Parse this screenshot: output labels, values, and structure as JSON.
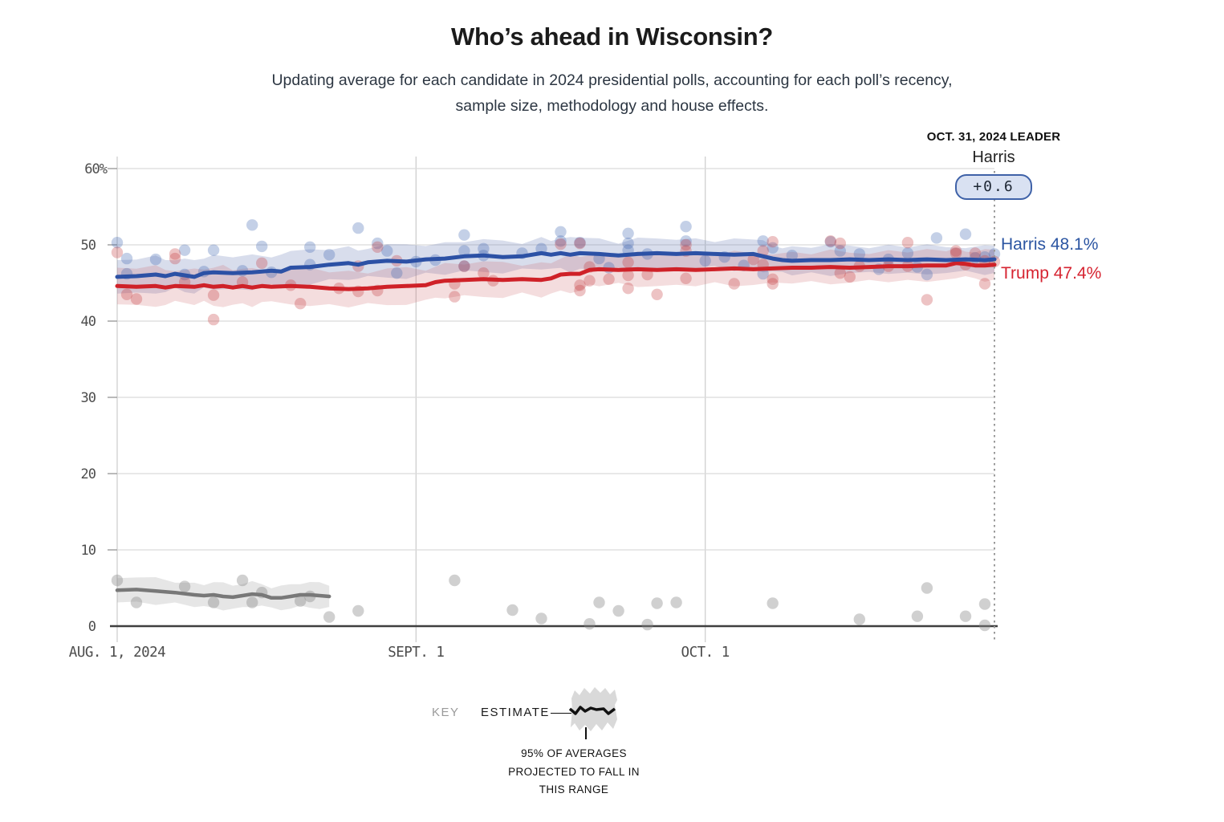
{
  "header": {
    "title": "Who’s ahead in Wisconsin?",
    "subtitle_line1": "Updating average for each candidate in 2024 presidential polls, accounting for each poll’s recency,",
    "subtitle_line2": "sample size, methodology and house effects."
  },
  "leader_annotation": {
    "date_label": "OCT. 31, 2024 LEADER",
    "leader_name": "Harris",
    "margin_badge": "+0.6"
  },
  "end_labels": {
    "harris": "Harris 48.1%",
    "trump": "Trump 47.4%"
  },
  "key": {
    "key_label": "KEY",
    "estimate_label": "ESTIMATE",
    "caption_line1": "95% OF AVERAGES",
    "caption_line2": "PROJECTED TO FALL IN",
    "caption_line3": "THIS RANGE"
  },
  "colors": {
    "harris_line": "#2c51a5",
    "trump_line": "#cf2128",
    "gray_line": "#787878",
    "harris_band": "rgba(98,118,180,0.25)",
    "trump_band": "rgba(205,100,105,0.22)",
    "gray_band": "rgba(165,165,165,0.28)",
    "harris_dot": "#3b63ae",
    "trump_dot": "#c4383d",
    "gray_dot": "#8a8a8a",
    "grid": "#dbdbdb",
    "grid_vertical": "#cfcfcf",
    "axis": "#3f3f3f",
    "tick_text": "#4c4c4c",
    "leader_line": "#9b9b9b",
    "badge_bg": "#d9e1f2",
    "badge_border": "#3f62a8",
    "harris_label": "#2b55a2",
    "trump_label": "#d62431"
  },
  "chart_data": {
    "type": "line",
    "title": "Who’s ahead in Wisconsin?",
    "x_axis": {
      "tick_labels": [
        "AUG. 1, 2024",
        "SEPT. 1",
        "OCT. 1"
      ],
      "tick_days": [
        0,
        31,
        61
      ],
      "domain_days": [
        0,
        91
      ],
      "end_day_label": "OCT. 31, 2024"
    },
    "y_axis": {
      "tick_labels": [
        "0",
        "10",
        "20",
        "30",
        "40",
        "50",
        "60%"
      ],
      "tick_values": [
        0,
        10,
        20,
        30,
        40,
        50,
        60
      ],
      "unit": "%",
      "range": [
        0,
        63
      ]
    },
    "leader_day": 91,
    "series": [
      {
        "name": "Harris",
        "end_value": 48.1,
        "band_halfwidth": 2.2,
        "points": [
          [
            0,
            45.8
          ],
          [
            2,
            45.9
          ],
          [
            4,
            46.1
          ],
          [
            5,
            45.9
          ],
          [
            6,
            46.2
          ],
          [
            7,
            46.0
          ],
          [
            8,
            45.8
          ],
          [
            9,
            46.3
          ],
          [
            10,
            46.4
          ],
          [
            12,
            46.3
          ],
          [
            14,
            46.4
          ],
          [
            16,
            46.6
          ],
          [
            17,
            46.5
          ],
          [
            18,
            47.0
          ],
          [
            20,
            47.1
          ],
          [
            22,
            47.4
          ],
          [
            24,
            47.6
          ],
          [
            25,
            47.4
          ],
          [
            26,
            47.7
          ],
          [
            28,
            47.9
          ],
          [
            30,
            47.8
          ],
          [
            32,
            48.1
          ],
          [
            34,
            48.2
          ],
          [
            36,
            48.5
          ],
          [
            38,
            48.6
          ],
          [
            40,
            48.4
          ],
          [
            42,
            48.5
          ],
          [
            44,
            48.9
          ],
          [
            45,
            48.7
          ],
          [
            46,
            48.9
          ],
          [
            47,
            48.7
          ],
          [
            48,
            48.9
          ],
          [
            50,
            48.8
          ],
          [
            52,
            48.6
          ],
          [
            54,
            48.8
          ],
          [
            56,
            48.9
          ],
          [
            58,
            48.8
          ],
          [
            60,
            48.9
          ],
          [
            62,
            48.8
          ],
          [
            64,
            48.7
          ],
          [
            66,
            48.8
          ],
          [
            67,
            48.5
          ],
          [
            68,
            48.2
          ],
          [
            69,
            48.0
          ],
          [
            70,
            47.9
          ],
          [
            72,
            48.0
          ],
          [
            74,
            48.0
          ],
          [
            76,
            48.1
          ],
          [
            78,
            48.0
          ],
          [
            80,
            48.1
          ],
          [
            82,
            48.0
          ],
          [
            84,
            48.1
          ],
          [
            86,
            48.0
          ],
          [
            88,
            48.1
          ],
          [
            90,
            48.0
          ],
          [
            91,
            48.1
          ]
        ]
      },
      {
        "name": "Trump",
        "end_value": 47.4,
        "band_halfwidth": 2.4,
        "points": [
          [
            0,
            44.6
          ],
          [
            2,
            44.5
          ],
          [
            4,
            44.6
          ],
          [
            5,
            44.4
          ],
          [
            6,
            44.6
          ],
          [
            8,
            44.5
          ],
          [
            9,
            44.7
          ],
          [
            10,
            44.5
          ],
          [
            11,
            44.6
          ],
          [
            12,
            44.4
          ],
          [
            13,
            44.6
          ],
          [
            14,
            44.4
          ],
          [
            15,
            44.6
          ],
          [
            16,
            44.5
          ],
          [
            18,
            44.6
          ],
          [
            20,
            44.5
          ],
          [
            22,
            44.3
          ],
          [
            24,
            44.2
          ],
          [
            26,
            44.3
          ],
          [
            28,
            44.5
          ],
          [
            30,
            44.6
          ],
          [
            32,
            44.7
          ],
          [
            33,
            45.1
          ],
          [
            34,
            45.3
          ],
          [
            36,
            45.4
          ],
          [
            38,
            45.5
          ],
          [
            40,
            45.4
          ],
          [
            42,
            45.5
          ],
          [
            44,
            45.4
          ],
          [
            45,
            45.6
          ],
          [
            46,
            46.1
          ],
          [
            47,
            46.2
          ],
          [
            48,
            46.2
          ],
          [
            49,
            46.7
          ],
          [
            50,
            46.8
          ],
          [
            52,
            46.7
          ],
          [
            54,
            46.8
          ],
          [
            56,
            46.7
          ],
          [
            58,
            46.8
          ],
          [
            60,
            46.7
          ],
          [
            62,
            46.8
          ],
          [
            64,
            46.9
          ],
          [
            66,
            46.8
          ],
          [
            68,
            46.9
          ],
          [
            70,
            47.0
          ],
          [
            72,
            47.0
          ],
          [
            74,
            47.1
          ],
          [
            76,
            47.0
          ],
          [
            78,
            47.1
          ],
          [
            80,
            47.2
          ],
          [
            82,
            47.2
          ],
          [
            84,
            47.3
          ],
          [
            86,
            47.3
          ],
          [
            87,
            47.6
          ],
          [
            88,
            47.5
          ],
          [
            89,
            47.3
          ],
          [
            90,
            47.3
          ],
          [
            91,
            47.4
          ]
        ]
      },
      {
        "name": "Third candidate (unlabeled gray)",
        "band_halfwidth": 1.6,
        "points": [
          [
            0,
            4.7
          ],
          [
            2,
            4.8
          ],
          [
            4,
            4.6
          ],
          [
            6,
            4.4
          ],
          [
            8,
            4.1
          ],
          [
            9,
            4.0
          ],
          [
            10,
            4.1
          ],
          [
            11,
            3.9
          ],
          [
            12,
            3.8
          ],
          [
            13,
            4.0
          ],
          [
            14,
            4.2
          ],
          [
            15,
            4.1
          ],
          [
            16,
            3.7
          ],
          [
            17,
            3.7
          ],
          [
            18,
            3.9
          ],
          [
            19,
            4.1
          ],
          [
            20,
            4.1
          ],
          [
            21,
            4.0
          ],
          [
            22,
            3.9
          ]
        ]
      }
    ],
    "scatter": [
      {
        "series": "Harris",
        "points": [
          [
            0,
            50.3
          ],
          [
            1,
            48.2
          ],
          [
            1,
            46.2
          ],
          [
            4,
            48.1
          ],
          [
            7,
            49.3
          ],
          [
            7,
            46.1
          ],
          [
            9,
            46.5
          ],
          [
            10,
            49.3
          ],
          [
            13,
            46.6
          ],
          [
            14,
            52.6
          ],
          [
            15,
            49.8
          ],
          [
            16,
            46.4
          ],
          [
            20,
            49.7
          ],
          [
            20,
            47.4
          ],
          [
            22,
            48.7
          ],
          [
            25,
            52.2
          ],
          [
            27,
            50.2
          ],
          [
            28,
            49.2
          ],
          [
            29,
            46.3
          ],
          [
            31,
            47.8
          ],
          [
            33,
            48.0
          ],
          [
            36,
            51.3
          ],
          [
            36,
            49.2
          ],
          [
            36,
            47.2
          ],
          [
            38,
            49.5
          ],
          [
            38,
            48.6
          ],
          [
            42,
            48.9
          ],
          [
            44,
            49.5
          ],
          [
            46,
            51.7
          ],
          [
            46,
            50.5
          ],
          [
            48,
            50.3
          ],
          [
            50,
            48.2
          ],
          [
            51,
            47.0
          ],
          [
            53,
            51.5
          ],
          [
            53,
            50.2
          ],
          [
            53,
            49.3
          ],
          [
            55,
            48.8
          ],
          [
            59,
            52.4
          ],
          [
            59,
            50.5
          ],
          [
            61,
            47.9
          ],
          [
            63,
            48.4
          ],
          [
            65,
            47.3
          ],
          [
            67,
            50.5
          ],
          [
            67,
            46.2
          ],
          [
            68,
            49.6
          ],
          [
            70,
            48.6
          ],
          [
            74,
            50.4
          ],
          [
            75,
            49.2
          ],
          [
            77,
            48.8
          ],
          [
            79,
            46.8
          ],
          [
            80,
            48.1
          ],
          [
            82,
            48.9
          ],
          [
            83,
            47.1
          ],
          [
            84,
            46.1
          ],
          [
            85,
            50.9
          ],
          [
            88,
            51.4
          ],
          [
            89,
            48.3
          ],
          [
            90,
            48.4
          ],
          [
            91,
            48.8
          ]
        ]
      },
      {
        "series": "Trump",
        "points": [
          [
            0,
            49.0
          ],
          [
            1,
            43.5
          ],
          [
            2,
            42.9
          ],
          [
            6,
            48.8
          ],
          [
            6,
            48.2
          ],
          [
            7,
            45.1
          ],
          [
            10,
            43.4
          ],
          [
            10,
            40.2
          ],
          [
            13,
            45.1
          ],
          [
            15,
            47.6
          ],
          [
            18,
            44.7
          ],
          [
            19,
            42.3
          ],
          [
            23,
            44.3
          ],
          [
            25,
            47.2
          ],
          [
            25,
            43.9
          ],
          [
            27,
            49.7
          ],
          [
            27,
            44.0
          ],
          [
            29,
            47.9
          ],
          [
            35,
            44.9
          ],
          [
            35,
            43.2
          ],
          [
            36,
            47.2
          ],
          [
            38,
            46.3
          ],
          [
            39,
            45.3
          ],
          [
            46,
            50.1
          ],
          [
            48,
            50.2
          ],
          [
            48,
            44.7
          ],
          [
            48,
            44.0
          ],
          [
            49,
            47.1
          ],
          [
            49,
            45.3
          ],
          [
            51,
            45.5
          ],
          [
            53,
            47.7
          ],
          [
            53,
            46.0
          ],
          [
            53,
            44.3
          ],
          [
            55,
            46.1
          ],
          [
            56,
            43.5
          ],
          [
            59,
            50.0
          ],
          [
            59,
            49.2
          ],
          [
            59,
            45.6
          ],
          [
            64,
            44.9
          ],
          [
            66,
            48.1
          ],
          [
            67,
            49.2
          ],
          [
            67,
            47.4
          ],
          [
            68,
            50.4
          ],
          [
            68,
            45.5
          ],
          [
            68,
            44.9
          ],
          [
            74,
            50.5
          ],
          [
            75,
            50.2
          ],
          [
            75,
            46.3
          ],
          [
            76,
            45.8
          ],
          [
            77,
            47.2
          ],
          [
            80,
            47.2
          ],
          [
            82,
            50.3
          ],
          [
            82,
            47.2
          ],
          [
            84,
            42.8
          ],
          [
            87,
            49.2
          ],
          [
            87,
            48.9
          ],
          [
            88,
            47.4
          ],
          [
            89,
            48.9
          ],
          [
            90,
            47.9
          ],
          [
            90,
            44.9
          ],
          [
            91,
            47.8
          ]
        ]
      },
      {
        "series": "Third candidate (unlabeled gray)",
        "points": [
          [
            0,
            6.0
          ],
          [
            2,
            3.1
          ],
          [
            7,
            5.2
          ],
          [
            10,
            3.1
          ],
          [
            13,
            6.0
          ],
          [
            14,
            3.1
          ],
          [
            15,
            4.4
          ],
          [
            19,
            3.3
          ],
          [
            20,
            3.9
          ],
          [
            22,
            1.2
          ],
          [
            25,
            2.0
          ],
          [
            35,
            6.0
          ],
          [
            41,
            2.1
          ],
          [
            44,
            1.0
          ],
          [
            49,
            0.3
          ],
          [
            50,
            3.1
          ],
          [
            52,
            2.0
          ],
          [
            55,
            0.2
          ],
          [
            56,
            3.0
          ],
          [
            58,
            3.1
          ],
          [
            68,
            3.0
          ],
          [
            77,
            0.9
          ],
          [
            83,
            1.3
          ],
          [
            84,
            5.0
          ],
          [
            88,
            1.3
          ],
          [
            90,
            2.9
          ],
          [
            90,
            0.1
          ]
        ]
      }
    ]
  }
}
